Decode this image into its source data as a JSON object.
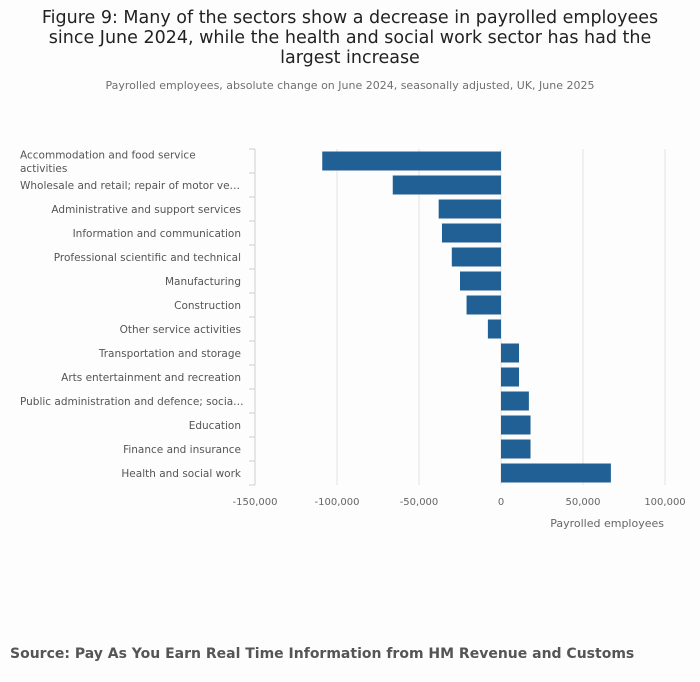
{
  "header": {
    "title": "Figure 9: Many of the sectors show a decrease in payrolled employees since June 2024, while the health and social work sector has had the largest increase",
    "subtitle": "Payrolled employees, absolute change on June 2024, seasonally adjusted, UK, June 2025"
  },
  "footer": {
    "source": "Source: Pay As You Earn Real Time Information from HM Revenue and Customs"
  },
  "colors": {
    "bar": "#206095",
    "grid": "#e2e2e3",
    "axis": "#d0d0d0"
  },
  "chart_data": {
    "type": "bar",
    "orientation": "horizontal",
    "title": "Figure 9: Many of the sectors show a decrease in payrolled employees since June 2024, while the health and social work sector has had the largest increase",
    "xlabel": "Payrolled employees",
    "ylabel": "",
    "xlim": [
      -150000,
      100000
    ],
    "x_ticks": [
      -150000,
      -100000,
      -50000,
      0,
      50000,
      100000
    ],
    "x_tick_labels": [
      "-150,000",
      "-100,000",
      "-50,000",
      "0",
      "50,000",
      "100,000"
    ],
    "categories": [
      "Accommodation and food service activities",
      "Wholesale and retail; repair of motor ve…",
      "Administrative and support services",
      "Information and communication",
      "Professional scientific and technical",
      "Manufacturing",
      "Construction",
      "Other service activities",
      "Transportation and storage",
      "Arts entertainment and recreation",
      "Public administration and defence; socia…",
      "Education",
      "Finance and insurance",
      "Health and social work"
    ],
    "values": [
      -109000,
      -66000,
      -38000,
      -36000,
      -30000,
      -25000,
      -21000,
      -8000,
      11000,
      11000,
      17000,
      18000,
      18000,
      67000
    ]
  }
}
